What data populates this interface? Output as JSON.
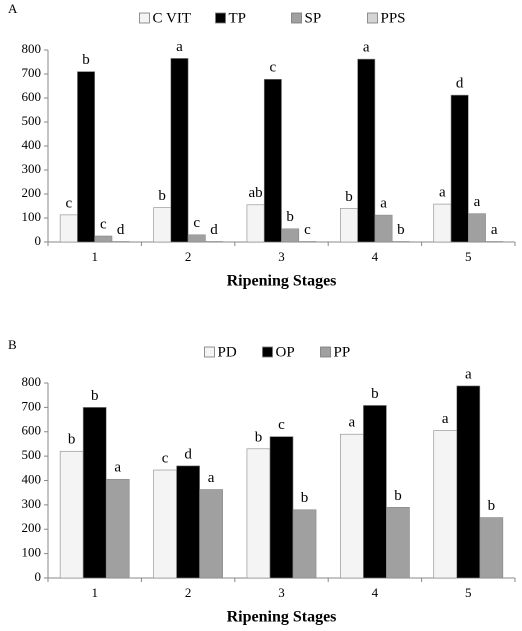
{
  "chart_data": [
    {
      "type": "bar",
      "panel": "A",
      "x_label": "Ripening Stages",
      "categories": [
        "1",
        "2",
        "3",
        "4",
        "5"
      ],
      "series": [
        {
          "name": "C VIT",
          "color": "#f4f4f4",
          "values": [
            113,
            143,
            155,
            140,
            158
          ],
          "letters": [
            "c",
            "b",
            "ab",
            "b",
            "a"
          ]
        },
        {
          "name": "TP",
          "color": "#000000",
          "values": [
            710,
            765,
            678,
            762,
            612
          ],
          "letters": [
            "b",
            "a",
            "c",
            "a",
            "d"
          ]
        },
        {
          "name": "SP",
          "color": "#a0a0a0",
          "values": [
            25,
            30,
            55,
            112,
            118
          ],
          "letters": [
            "c",
            "c",
            "b",
            "a",
            "a"
          ]
        },
        {
          "name": "PPS",
          "color": "#d4d4d4",
          "values": [
            2,
            2,
            2,
            2,
            2
          ],
          "letters": [
            "d",
            "d",
            "c",
            "b",
            "a"
          ]
        }
      ],
      "ylim": [
        0,
        800
      ],
      "yticks": [
        0,
        100,
        200,
        300,
        400,
        500,
        600,
        700,
        800
      ],
      "legend": "top"
    },
    {
      "type": "bar",
      "panel": "B",
      "x_label": "Ripening Stages",
      "categories": [
        "1",
        "2",
        "3",
        "4",
        "5"
      ],
      "series": [
        {
          "name": "PD",
          "color": "#f4f4f4",
          "values": [
            520,
            443,
            530,
            590,
            605
          ],
          "letters": [
            "b",
            "c",
            "b",
            "a",
            "a"
          ]
        },
        {
          "name": "OP",
          "color": "#000000",
          "values": [
            700,
            460,
            580,
            708,
            788
          ],
          "letters": [
            "b",
            "d",
            "c",
            "b",
            "a"
          ]
        },
        {
          "name": "PP",
          "color": "#a0a0a0",
          "values": [
            405,
            363,
            280,
            290,
            248
          ],
          "letters": [
            "a",
            "a",
            "b",
            "b",
            "b"
          ]
        }
      ],
      "ylim": [
        0,
        800
      ],
      "yticks": [
        0,
        100,
        200,
        300,
        400,
        500,
        600,
        700,
        800
      ],
      "legend": "top"
    }
  ]
}
